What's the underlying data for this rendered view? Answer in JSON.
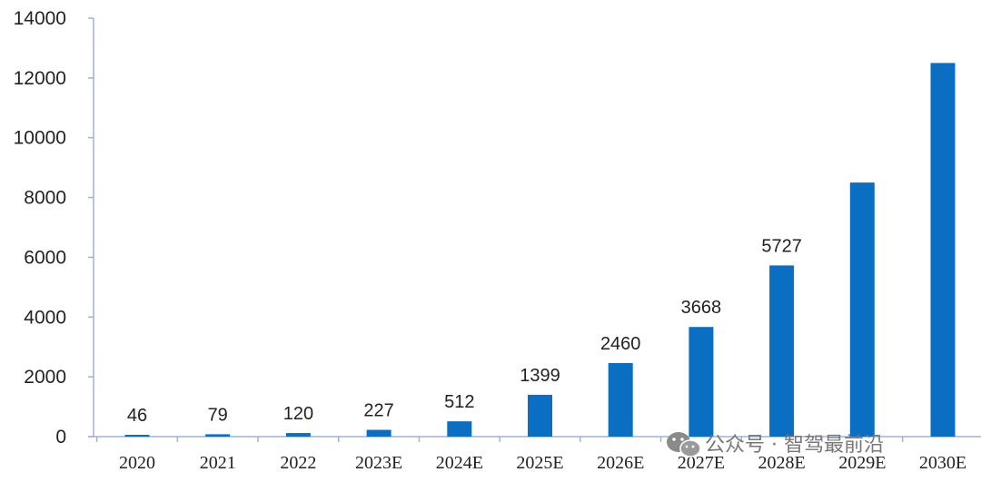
{
  "chart_data": {
    "type": "bar",
    "categories": [
      "2020",
      "2021",
      "2022",
      "2023E",
      "2024E",
      "2025E",
      "2026E",
      "2027E",
      "2028E",
      "2029E",
      "2030E"
    ],
    "values": [
      46,
      79,
      120,
      227,
      512,
      1399,
      2460,
      3668,
      5727,
      8500,
      12500
    ],
    "data_labels": [
      "46",
      "79",
      "120",
      "227",
      "512",
      "1399",
      "2460",
      "3668",
      "5727",
      "",
      ""
    ],
    "yticks": [
      "0",
      "2000",
      "4000",
      "6000",
      "8000",
      "10000",
      "12000",
      "14000"
    ],
    "ylim": [
      0,
      14000
    ],
    "bar_color": "#0a6fc2",
    "axis_color": "#9db3d9",
    "grid": false,
    "legend": "none"
  },
  "watermark": {
    "text": "公众号 · 智驾最前沿",
    "icon": "wechat-icon"
  }
}
